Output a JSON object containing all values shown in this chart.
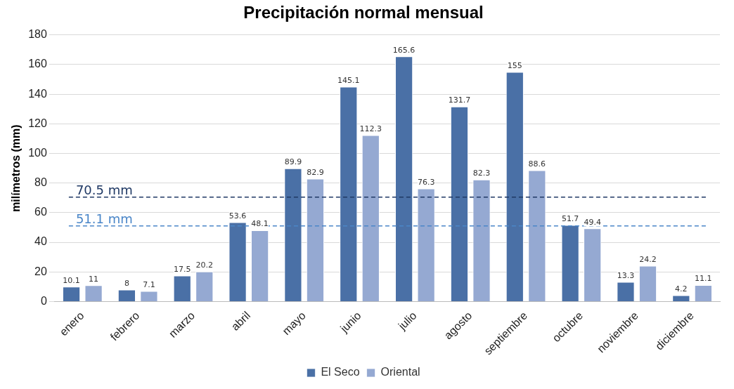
{
  "chart_data": {
    "type": "bar",
    "title": "Precipitación normal mensual",
    "ylabel": "milímetros (mm)",
    "categories": [
      "enero",
      "febrero",
      "marzo",
      "abril",
      "mayo",
      "junio",
      "julio",
      "agosto",
      "septiembre",
      "octubre",
      "noviembre",
      "diciembre"
    ],
    "series": [
      {
        "name": "El Seco",
        "color": "#4a70a6",
        "values": [
          10.1,
          8,
          17.5,
          53.6,
          89.9,
          145.1,
          165.6,
          131.7,
          155,
          51.7,
          13.3,
          4.2
        ]
      },
      {
        "name": "Oriental",
        "color": "#95a9d2",
        "values": [
          11,
          7.1,
          20.2,
          48.1,
          82.9,
          112.3,
          76.3,
          82.3,
          88.6,
          49.4,
          24.2,
          11.1
        ]
      }
    ],
    "ylim": [
      0,
      180
    ],
    "yticks": [
      0,
      20,
      40,
      60,
      80,
      100,
      120,
      140,
      160,
      180
    ],
    "grid": "y",
    "legend": "bottom",
    "data_labels": true,
    "ref_lines": [
      {
        "axis": "y",
        "value": 70.5,
        "label": "70.5 mm",
        "color": "#1f3864",
        "line_style": "dashed"
      },
      {
        "axis": "y",
        "value": 51.1,
        "label": "51.1 mm",
        "color": "#4a86c8",
        "line_style": "dashed"
      }
    ]
  }
}
